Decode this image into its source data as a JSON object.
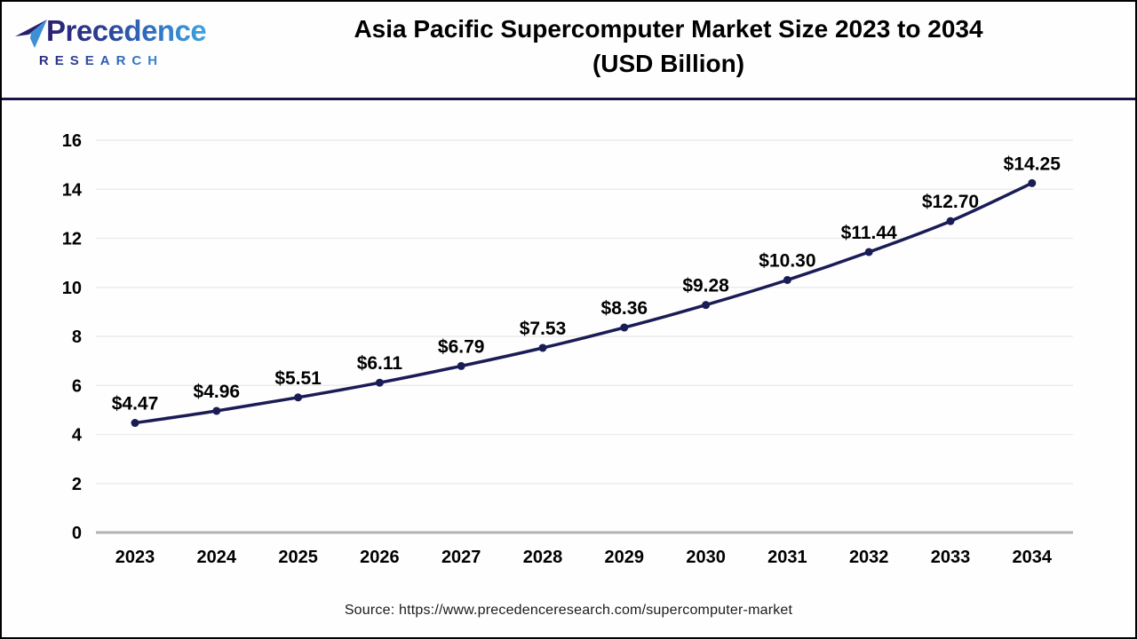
{
  "header": {
    "logo": {
      "line1": "Precedence",
      "line2": "RESEARCH",
      "icon": "paper-plane-logo-icon"
    },
    "title_line1": "Asia Pacific Supercomputer Market Size 2023 to 2034",
    "title_line2": "(USD Billion)"
  },
  "chart_data": {
    "type": "line",
    "title": "Asia Pacific Supercomputer Market Size 2023 to 2034 (USD Billion)",
    "categories": [
      "2023",
      "2024",
      "2025",
      "2026",
      "2027",
      "2028",
      "2029",
      "2030",
      "2031",
      "2032",
      "2033",
      "2034"
    ],
    "values": [
      4.47,
      4.96,
      5.51,
      6.11,
      6.79,
      7.53,
      8.36,
      9.28,
      10.3,
      11.44,
      12.7,
      14.25
    ],
    "point_labels": [
      "$4.47",
      "$4.96",
      "$5.51",
      "$6.11",
      "$6.79",
      "$7.53",
      "$8.36",
      "$9.28",
      "$10.30",
      "$11.44",
      "$12.70",
      "$14.25"
    ],
    "xlabel": "",
    "ylabel": "",
    "ylim": [
      0,
      16
    ],
    "ytick_step": 2,
    "grid": true,
    "legend_position": "none",
    "line_color": "#1a1c55",
    "marker_color": "#1a1c55",
    "grid_color": "#ececec",
    "axis_color": "#b3b3b3",
    "tick_color": "#000000",
    "point_label_color": "#000000"
  },
  "source": {
    "text": "Source: https://www.precedenceresearch.com/supercomputer-market"
  },
  "colors": {
    "frame_border": "#000000",
    "header_rule": "#181545",
    "background": "#fefefe"
  }
}
